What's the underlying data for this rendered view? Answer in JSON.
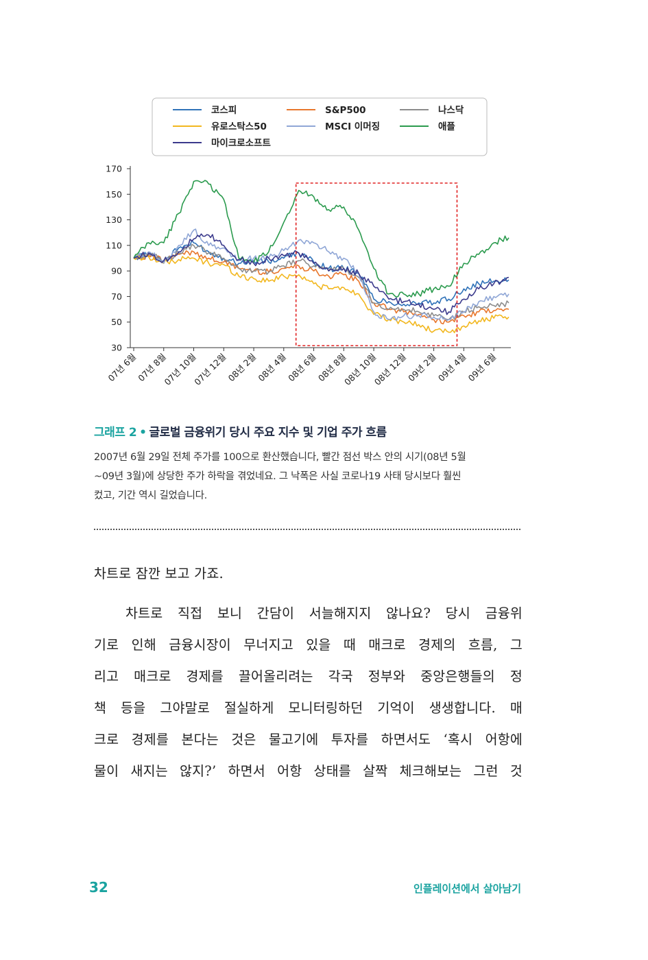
{
  "chart_data": {
    "type": "line",
    "ylim": [
      30,
      170
    ],
    "yticks": [
      "170",
      "150",
      "130",
      "110",
      "90",
      "70",
      "50",
      "30"
    ],
    "yticks_values": [
      170,
      150,
      130,
      110,
      90,
      70,
      50,
      30
    ],
    "xticks": [
      "07년 6월",
      "07년 8월",
      "07년 10월",
      "07년 12월",
      "08년 2월",
      "08년 4월",
      "08년 6월",
      "08년 8월",
      "08년 10월",
      "08년 12월",
      "09년 2월",
      "09년 4월",
      "09년 6월"
    ],
    "x": [
      "07년 6월",
      "07년 7월",
      "07년 8월",
      "07년 9월",
      "07년 10월",
      "07년 11월",
      "07년 12월",
      "08년 1월",
      "08년 2월",
      "08년 3월",
      "08년 4월",
      "08년 5월",
      "08년 6월",
      "08년 7월",
      "08년 8월",
      "08년 9월",
      "08년 10월",
      "08년 11월",
      "08년 12월",
      "09년 1월",
      "09년 2월",
      "09년 3월",
      "09년 4월",
      "09년 5월",
      "09년 6월",
      "09년 7월"
    ],
    "legend_position": "top",
    "highlight_box": {
      "from": "08년 5월",
      "to": "09년 3월",
      "style": "red dashed"
    },
    "series": [
      {
        "name": "코스피",
        "color": "#2f72b8",
        "values": [
          100,
          104,
          98,
          108,
          112,
          105,
          100,
          96,
          98,
          97,
          100,
          104,
          97,
          92,
          92,
          88,
          68,
          66,
          64,
          65,
          65,
          68,
          76,
          80,
          82,
          83
        ]
      },
      {
        "name": "S&P500",
        "color": "#e8762b",
        "values": [
          100,
          102,
          98,
          103,
          105,
          100,
          97,
          92,
          90,
          89,
          92,
          94,
          90,
          86,
          87,
          82,
          65,
          60,
          58,
          56,
          52,
          50,
          55,
          58,
          59,
          60
        ]
      },
      {
        "name": "나스닥",
        "color": "#8c8c8c",
        "values": [
          100,
          103,
          98,
          104,
          110,
          104,
          100,
          92,
          90,
          89,
          94,
          98,
          94,
          90,
          92,
          85,
          65,
          60,
          60,
          58,
          55,
          52,
          58,
          62,
          63,
          65
        ]
      },
      {
        "name": "유로스탁스50",
        "color": "#f2b71e",
        "values": [
          100,
          101,
          96,
          99,
          100,
          96,
          95,
          86,
          84,
          82,
          86,
          87,
          80,
          76,
          77,
          72,
          56,
          52,
          50,
          48,
          43,
          42,
          47,
          51,
          53,
          54
        ]
      },
      {
        "name": "MSCI 이머징",
        "color": "#8fa6d6",
        "values": [
          100,
          105,
          96,
          110,
          122,
          110,
          108,
          98,
          100,
          100,
          106,
          114,
          112,
          105,
          100,
          88,
          58,
          52,
          55,
          55,
          54,
          52,
          58,
          66,
          70,
          72
        ]
      },
      {
        "name": "애플",
        "color": "#2a9a4d",
        "values": [
          100,
          112,
          112,
          135,
          160,
          158,
          146,
          100,
          97,
          105,
          128,
          153,
          148,
          138,
          140,
          122,
          92,
          72,
          72,
          72,
          76,
          78,
          96,
          103,
          112,
          116
        ]
      },
      {
        "name": "마이크로소프트",
        "color": "#3b3a8c",
        "values": [
          100,
          104,
          98,
          105,
          115,
          118,
          110,
          99,
          96,
          100,
          102,
          104,
          96,
          90,
          92,
          88,
          78,
          68,
          66,
          64,
          60,
          58,
          68,
          76,
          80,
          85
        ]
      }
    ]
  },
  "caption": {
    "label": "그래프 2",
    "bullet": "•",
    "title": "글로벌 금융위기 당시 주요 지수 및 기업 주가 흐름",
    "lines": [
      "2007년 6월 29일 전체 주가를 100으로 환산했습니다, 빨간 점선 박스 안의 시기(08년 5월",
      "~09년 3월)에 상당한 주가 하락을 겪었네요. 그 낙폭은 사실 코로나19 사태 당시보다 훨씬",
      "컸고, 기간 역시 길었습니다."
    ]
  },
  "body": {
    "first_line": "차트로 잠깐 보고 가죠.",
    "paragraph_lines": [
      "차트로 직접 보니 간담이 서늘해지지 않나요? 당시 금융위",
      "기로 인해 금융시장이 무너지고 있을 때 매크로 경제의 흐름, 그",
      "리고 매크로 경제를 끌어올리려는 각국 정부와 중앙은행들의 정",
      "책 등을 그야말로 절실하게 모니터링하던 기억이 생생합니다. 매",
      "크로 경제를 본다는 것은 물고기에 투자를 하면서도 ‘혹시 어항에",
      "물이 새지는 않지?’ 하면서 어항 상태를 살짝 체크해보는 그런 것"
    ]
  },
  "footer": {
    "page_number": "32",
    "book_title": "인플레이션에서 살아남기"
  }
}
